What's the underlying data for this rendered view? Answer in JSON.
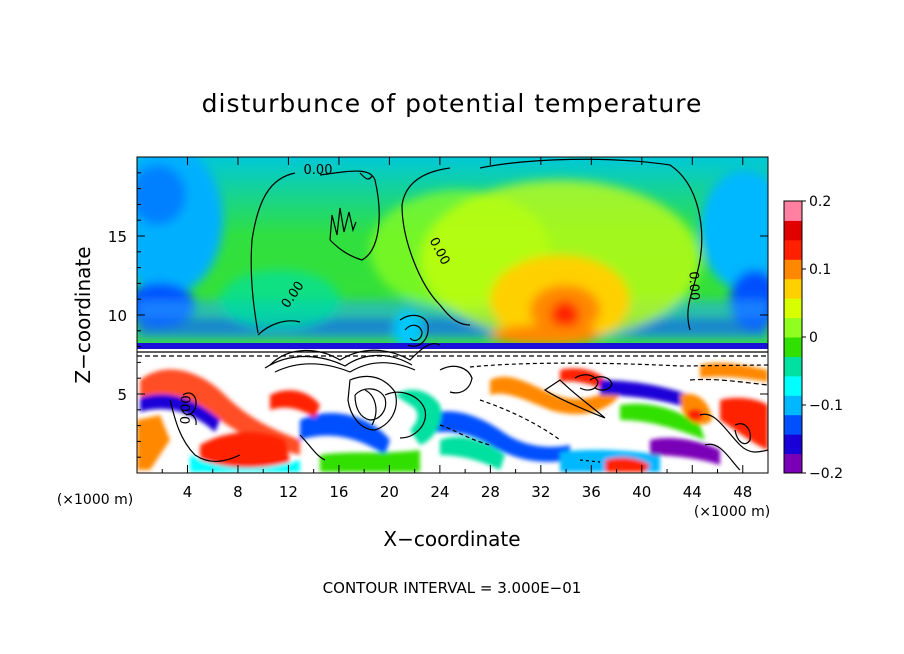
{
  "chart_data": {
    "type": "heatmap",
    "title": "disturbunce of potential temperature",
    "xlabel": "X−coordinate",
    "ylabel": "Z−coordinate",
    "x_unit_left": "(×1000 m)",
    "x_unit_right": "(×1000 m)",
    "xlim": [
      0,
      50
    ],
    "ylim": [
      0,
      20
    ],
    "x_ticks": [
      4,
      8,
      12,
      16,
      20,
      24,
      28,
      32,
      36,
      40,
      44,
      48
    ],
    "x_tick_labels": [
      "4",
      "8",
      "12",
      "16",
      "20",
      "24",
      "28",
      "32",
      "36",
      "40",
      "44",
      "48"
    ],
    "y_ticks": [
      5,
      10,
      15
    ],
    "y_tick_labels": [
      "5",
      "10",
      "15"
    ],
    "colorbar": {
      "min": -0.2,
      "max": 0.2,
      "ticks": [
        0.2,
        0.1,
        0,
        -0.1,
        -0.2
      ],
      "tick_labels": [
        "0.2",
        "0.1",
        "0",
        "−0.1",
        "−0.2"
      ],
      "colors": [
        "#7a00b8",
        "#1a00d8",
        "#0050ff",
        "#00b8ff",
        "#00ffff",
        "#00e0a0",
        "#30e000",
        "#90ff20",
        "#d8ff00",
        "#ffd000",
        "#ff8800",
        "#ff2000",
        "#e00000",
        "#ff80a0"
      ]
    },
    "contour_labels": [
      "0.00",
      "0.00",
      "0.00",
      "0.00",
      "0.00"
    ],
    "annotation": "CONTOUR INTERVAL = 3.000E−01"
  }
}
